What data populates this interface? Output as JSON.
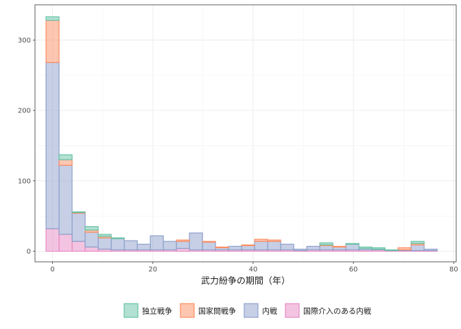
{
  "chart_data": {
    "type": "bar",
    "subtype": "stacked-histogram",
    "title": "",
    "xlabel": "武力紛争の期間（年）",
    "ylabel": "",
    "xlim": [
      -3.5,
      80.5
    ],
    "ylim": [
      -15,
      350
    ],
    "xticks": [
      0,
      20,
      40,
      60,
      80
    ],
    "yticks": [
      0,
      100,
      200,
      300
    ],
    "bin_width": 2.6,
    "bin_starts": [
      -1.3,
      1.3,
      3.9,
      6.5,
      9.1,
      11.7,
      14.3,
      16.9,
      19.5,
      22.1,
      24.7,
      27.3,
      29.9,
      32.5,
      35.1,
      37.7,
      40.3,
      42.9,
      45.5,
      48.1,
      50.7,
      53.3,
      55.9,
      58.5,
      61.1,
      63.7,
      66.3,
      68.9,
      71.5,
      74.1
    ],
    "grid": true,
    "legend_position": "bottom",
    "series": [
      {
        "name": "国際介入のある内戦",
        "fill": "#e78ac3",
        "values": [
          32,
          24,
          14,
          6,
          3,
          2,
          2,
          2,
          2,
          2,
          4,
          2,
          2,
          2,
          2,
          2,
          2,
          2,
          2,
          1,
          2,
          2,
          2,
          2,
          2,
          2,
          1,
          1,
          1,
          1
        ]
      },
      {
        "name": "内戦",
        "fill": "#8da0cb",
        "values": [
          236,
          98,
          40,
          21,
          16,
          16,
          13,
          8,
          20,
          12,
          10,
          24,
          11,
          3,
          5,
          6,
          12,
          12,
          8,
          2,
          5,
          6,
          4,
          8,
          2,
          1,
          0,
          1,
          8,
          2
        ]
      },
      {
        "name": "国家間戦争",
        "fill": "#fc8d62",
        "values": [
          60,
          8,
          1,
          3,
          2,
          0,
          0,
          0,
          0,
          0,
          2,
          0,
          1,
          1,
          0,
          1,
          3,
          2,
          0,
          0,
          0,
          1,
          1,
          0,
          0,
          0,
          0,
          3,
          2,
          0
        ]
      },
      {
        "name": "独立戦争",
        "fill": "#66c2a5",
        "values": [
          5,
          7,
          1,
          5,
          3,
          1,
          0,
          0,
          0,
          0,
          0,
          0,
          0,
          0,
          0,
          0,
          0,
          0,
          0,
          0,
          0,
          3,
          0,
          1,
          2,
          2,
          1,
          0,
          3,
          0
        ]
      }
    ]
  }
}
